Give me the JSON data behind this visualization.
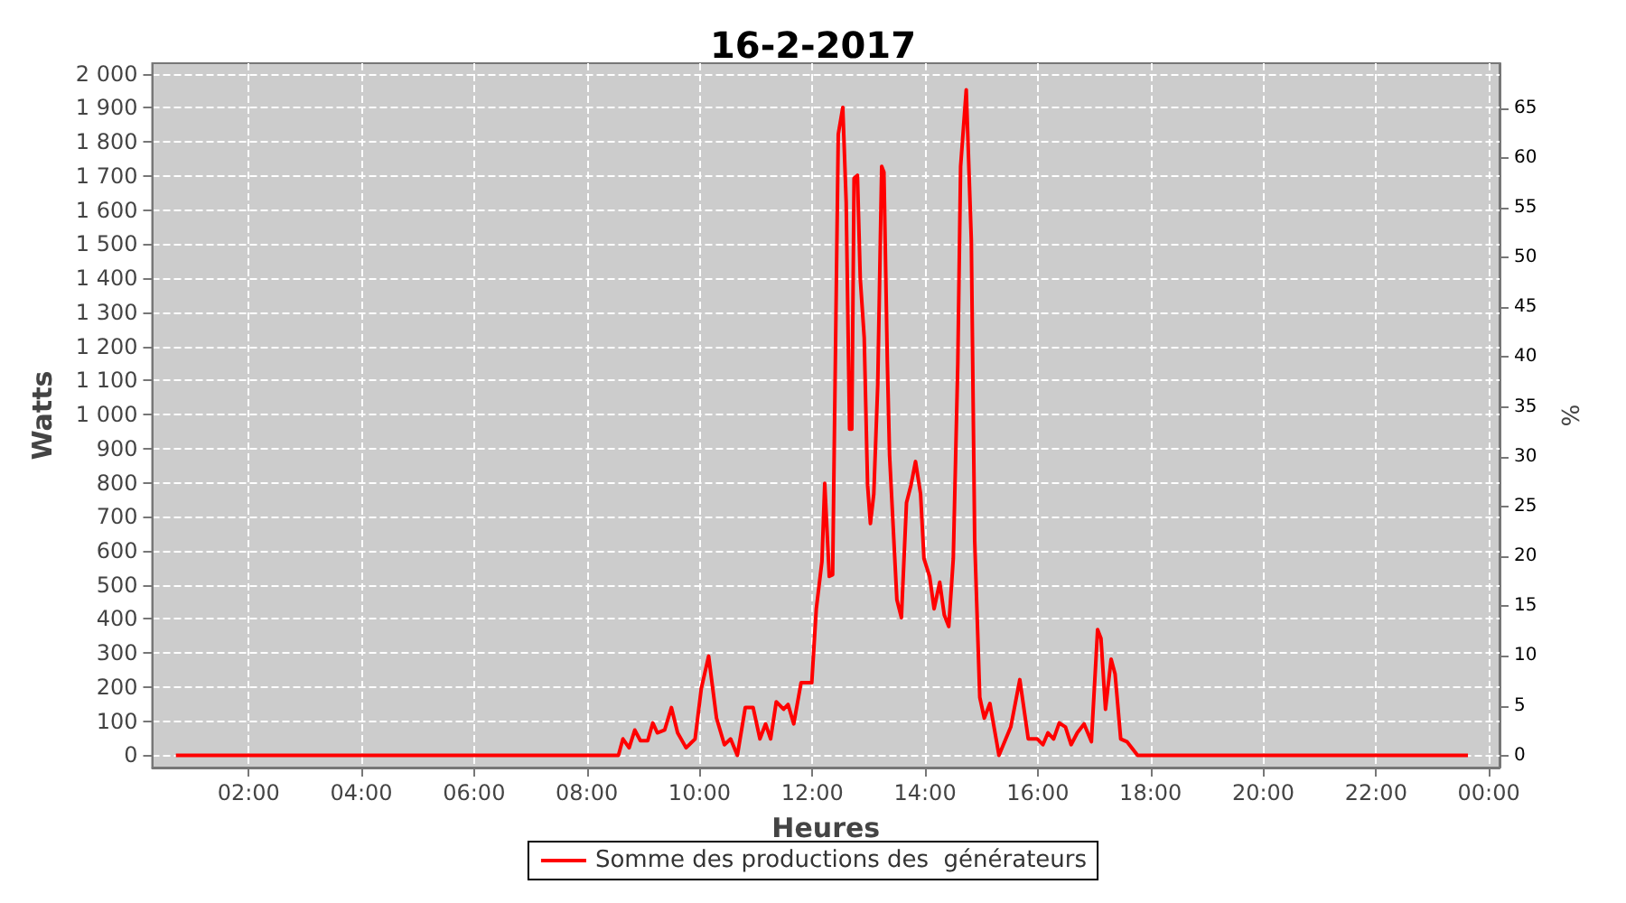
{
  "chart_data": {
    "type": "line",
    "title": "16-2-2017",
    "xlabel": "Heures",
    "ylabel": "Watts",
    "y2label": "%",
    "xlim": [
      0.29,
      24.19
    ],
    "xticks": [
      {
        "value": 2,
        "label": "02:00"
      },
      {
        "value": 4,
        "label": "04:00"
      },
      {
        "value": 6,
        "label": "06:00"
      },
      {
        "value": 8,
        "label": "08:00"
      },
      {
        "value": 10,
        "label": "10:00"
      },
      {
        "value": 12,
        "label": "12:00"
      },
      {
        "value": 14,
        "label": "14:00"
      },
      {
        "value": 16,
        "label": "16:00"
      },
      {
        "value": 18,
        "label": "18:00"
      },
      {
        "value": 20,
        "label": "20:00"
      },
      {
        "value": 22,
        "label": "22:00"
      },
      {
        "value": 24,
        "label": "00:00"
      }
    ],
    "ylim": [
      -36,
      2031
    ],
    "yticks": [
      0,
      100,
      200,
      300,
      400,
      500,
      600,
      700,
      800,
      900,
      {
        "value": 1000,
        "label": "1 000"
      },
      {
        "value": 1100,
        "label": "1 100"
      },
      {
        "value": 1200,
        "label": "1 200"
      },
      {
        "value": 1300,
        "label": "1 300"
      },
      {
        "value": 1400,
        "label": "1 400"
      },
      {
        "value": 1500,
        "label": "1 500"
      },
      {
        "value": 1600,
        "label": "1 600"
      },
      {
        "value": 1700,
        "label": "1 700"
      },
      {
        "value": 1800,
        "label": "1 800"
      },
      {
        "value": 1900,
        "label": "1 900"
      },
      {
        "value": 2000,
        "label": "2 000"
      }
    ],
    "y2lim": [
      -1.2,
      69.5
    ],
    "y2ticks": [
      0,
      5,
      10,
      15,
      20,
      25,
      30,
      35,
      40,
      45,
      50,
      55,
      60,
      65
    ],
    "grid": true,
    "legend": "bottom",
    "series": [
      {
        "name": "Somme des productions des  générateurs",
        "color": "#ff0000",
        "x": [
          0.71,
          8.56,
          8.64,
          8.75,
          8.85,
          8.95,
          9.08,
          9.17,
          9.25,
          9.38,
          9.5,
          9.61,
          9.76,
          9.92,
          10.03,
          10.16,
          10.3,
          10.44,
          10.55,
          10.67,
          10.81,
          10.95,
          11.07,
          11.17,
          11.26,
          11.36,
          11.49,
          11.57,
          11.67,
          11.8,
          11.99,
          12.07,
          12.17,
          12.22,
          12.3,
          12.36,
          12.4,
          12.46,
          12.54,
          12.6,
          12.66,
          12.7,
          12.74,
          12.8,
          12.85,
          12.92,
          12.98,
          13.03,
          13.09,
          13.16,
          13.23,
          13.27,
          13.33,
          13.37,
          13.46,
          13.5,
          13.58,
          13.67,
          13.75,
          13.83,
          13.92,
          13.98,
          14.08,
          14.16,
          14.26,
          14.34,
          14.42,
          14.5,
          14.58,
          14.63,
          14.73,
          14.82,
          14.88,
          14.97,
          15.05,
          15.15,
          15.26,
          15.31,
          15.52,
          15.68,
          15.83,
          15.99,
          16.09,
          16.18,
          16.28,
          16.38,
          16.49,
          16.59,
          16.7,
          16.82,
          16.95,
          17.06,
          17.12,
          17.2,
          17.3,
          17.37,
          17.47,
          17.58,
          17.77,
          23.63
        ],
        "values": [
          0,
          0,
          48,
          22,
          74,
          43,
          43,
          95,
          66,
          74,
          140,
          66,
          22,
          48,
          196,
          291,
          109,
          31,
          48,
          0,
          140,
          140,
          48,
          92,
          48,
          157,
          135,
          149,
          92,
          213,
          213,
          430,
          568,
          798,
          525,
          530,
          1053,
          1823,
          1901,
          1624,
          957,
          957,
          1693,
          1702,
          1399,
          1226,
          793,
          680,
          767,
          1087,
          1728,
          1711,
          1157,
          880,
          585,
          456,
          404,
          741,
          793,
          862,
          767,
          577,
          525,
          430,
          508,
          412,
          378,
          577,
          1148,
          1728,
          1953,
          1512,
          629,
          170,
          109,
          152,
          48,
          0,
          83,
          222,
          48,
          48,
          31,
          66,
          48,
          95,
          83,
          31,
          66,
          92,
          40,
          369,
          343,
          135,
          282,
          239,
          48,
          40,
          0,
          0
        ]
      }
    ]
  }
}
